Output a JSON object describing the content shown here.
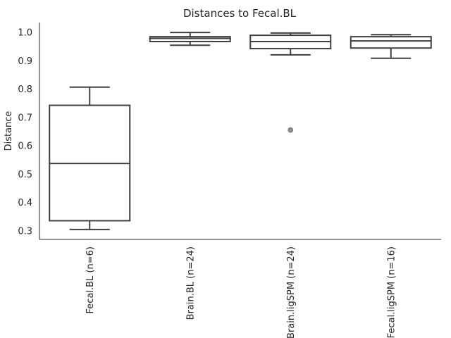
{
  "chart_data": {
    "type": "box",
    "title": "Distances to Fecal.BL",
    "ylabel": "Distance",
    "xlabel": "",
    "ylim": [
      0.27,
      1.035
    ],
    "yticks": [
      0.3,
      0.4,
      0.5,
      0.6,
      0.7,
      0.8,
      0.9,
      1.0
    ],
    "ytick_labels": [
      "0.3",
      "0.4",
      "0.5",
      "0.6",
      "0.7",
      "0.8",
      "0.9",
      "1.0"
    ],
    "grid": false,
    "box_stroke": "#3f3f3f",
    "flier_color": "#8c8c8c",
    "categories": [
      "Fecal.BL (n=6)",
      "Brain.BL (n=24)",
      "Brain.ligSPM (n=24)",
      "Fecal.ligSPM (n=16)"
    ],
    "boxes": [
      {
        "category": "Fecal.BL (n=6)",
        "whisker_low": 0.305,
        "q1": 0.336,
        "median": 0.538,
        "q3": 0.743,
        "whisker_high": 0.807,
        "outliers": []
      },
      {
        "category": "Brain.BL (n=24)",
        "whisker_low": 0.955,
        "q1": 0.968,
        "median": 0.979,
        "q3": 0.985,
        "whisker_high": 1.0,
        "outliers": []
      },
      {
        "category": "Brain.ligSPM (n=24)",
        "whisker_low": 0.921,
        "q1": 0.943,
        "median": 0.968,
        "q3": 0.99,
        "whisker_high": 0.998,
        "outliers": [
          0.656
        ]
      },
      {
        "category": "Fecal.ligSPM (n=16)",
        "whisker_low": 0.909,
        "q1": 0.945,
        "median": 0.97,
        "q3": 0.985,
        "whisker_high": 0.992,
        "outliers": []
      }
    ]
  }
}
